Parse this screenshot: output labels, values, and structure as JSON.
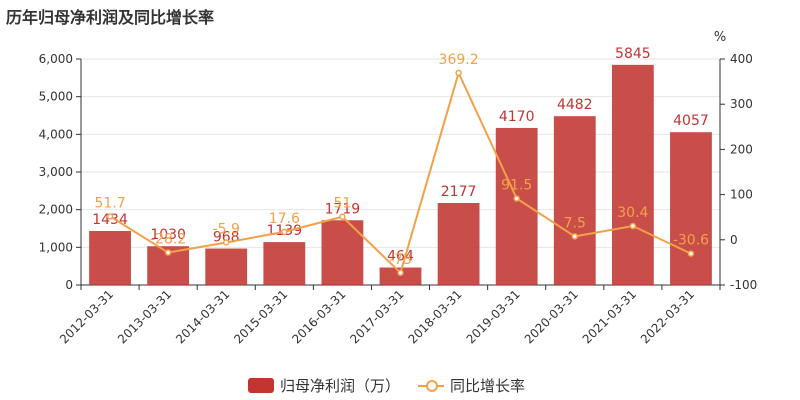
{
  "title": "历年归母净利润及同比增长率",
  "colors": {
    "bar": "#c23531",
    "line": "#f2a14a",
    "axis": "#333333",
    "grid": "#e6e6e6"
  },
  "chart_data": {
    "type": "bar+line",
    "title": "历年归母净利润及同比增长率",
    "categories": [
      "2012-03-31",
      "2013-03-31",
      "2014-03-31",
      "2015-03-31",
      "2016-03-31",
      "2017-03-31",
      "2018-03-31",
      "2019-03-31",
      "2020-03-31",
      "2021-03-31",
      "2022-03-31"
    ],
    "series": [
      {
        "name": "归母净利润（万）",
        "type": "bar",
        "axis": "left",
        "values": [
          1434,
          1030,
          968,
          1139,
          1719,
          464,
          2177,
          4170,
          4482,
          5845,
          4057
        ],
        "labels": [
          "1434",
          "1030",
          "968",
          "1139",
          "1719",
          "464",
          "2177",
          "4170",
          "4482",
          "5845",
          "4057"
        ]
      },
      {
        "name": "同比增长率",
        "type": "line",
        "axis": "right",
        "values": [
          51.7,
          -28.2,
          -5.9,
          17.6,
          51,
          -73,
          369.2,
          91.5,
          7.5,
          30.4,
          -30.6
        ],
        "labels": [
          "51.7",
          "-28.2",
          "-5.9",
          "17.6",
          "51",
          "-73",
          "369.2",
          "91.5",
          "7.5",
          "30.4",
          "-30.6"
        ]
      }
    ],
    "y_left": {
      "ylim": [
        0,
        6000
      ],
      "ticks": [
        0,
        1000,
        2000,
        3000,
        4000,
        5000,
        6000
      ],
      "tick_labels": [
        "0",
        "1,000",
        "2,000",
        "3,000",
        "4,000",
        "5,000",
        "6,000"
      ]
    },
    "y_right": {
      "unit": "%",
      "ylim": [
        -100,
        400
      ],
      "ticks": [
        -100,
        0,
        100,
        200,
        300,
        400
      ],
      "tick_labels": [
        "-100",
        "0",
        "100",
        "200",
        "300",
        "400"
      ]
    },
    "grid": true,
    "legend_position": "bottom-center"
  },
  "legend": {
    "bar_label": "归母净利润（万）",
    "line_label": "同比增长率"
  }
}
